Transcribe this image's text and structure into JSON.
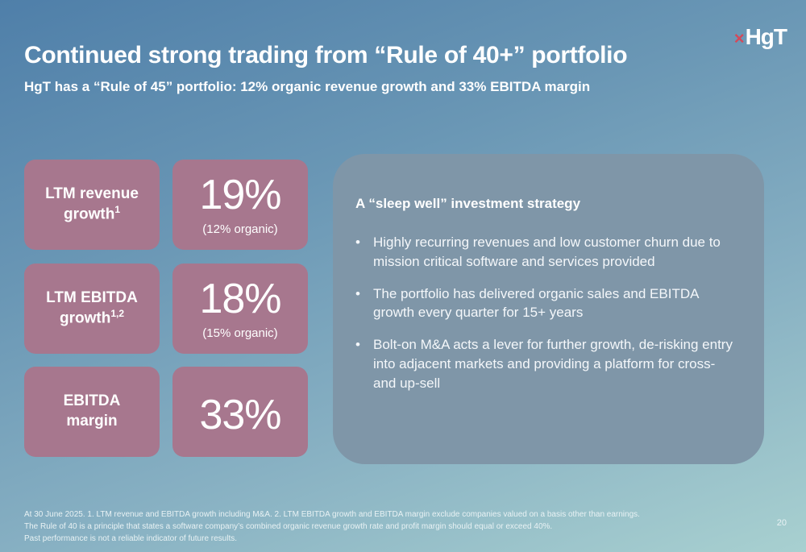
{
  "logo": {
    "mark": "×",
    "text": "HgT"
  },
  "header": {
    "title": "Continued strong trading from “Rule of 40+” portfolio",
    "subtitle": "HgT has a “Rule of 45” portfolio: 12% organic revenue growth and 33% EBITDA margin"
  },
  "metrics": [
    {
      "label_line1": "LTM revenue",
      "label_line2": "growth",
      "sup": "1",
      "value": "19%",
      "note": "(12% organic)"
    },
    {
      "label_line1": "LTM EBITDA",
      "label_line2": "growth",
      "sup": "1,2",
      "value": "18%",
      "note": "(15% organic)"
    },
    {
      "label_line1": "EBITDA",
      "label_line2": "margin",
      "value": "33%"
    }
  ],
  "strategy": {
    "title": "A “sleep well” investment strategy",
    "bullets": [
      "Highly recurring revenues and low customer churn due to mission critical software and services provided",
      "The portfolio has delivered organic sales and EBITDA growth every quarter for 15+ years",
      "Bolt-on M&A acts a lever for further growth, de-risking entry into adjacent markets and providing a platform for cross- and up-sell"
    ]
  },
  "footnotes": [
    "At 30 June 2025. 1. LTM revenue and EBITDA growth including M&A. 2. LTM EBITDA growth and EBITDA margin exclude companies valued on a basis other than earnings.",
    "The Rule of 40 is a principle that states a software company’s combined organic revenue growth rate and profit margin should equal or exceed 40%.",
    "Past performance is not a reliable indicator of future results."
  ],
  "page_number": "20"
}
